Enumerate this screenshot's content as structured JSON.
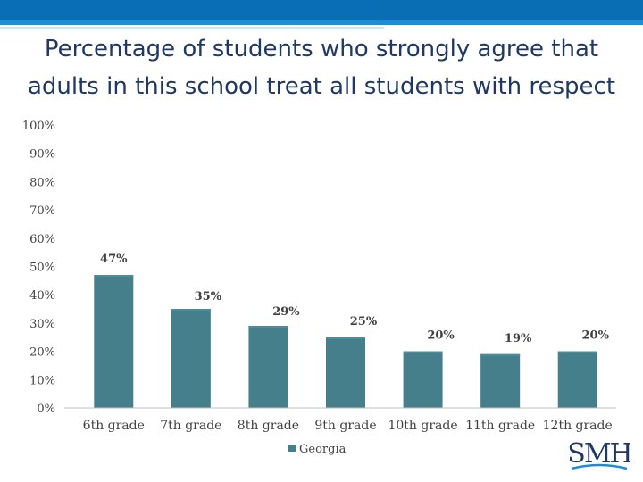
{
  "title_lines": [
    "Percentage of students who strongly agree that",
    "adults in this school treat all students with respect"
  ],
  "logo_text": "SMH",
  "colors": {
    "bar": "#467f8c",
    "bar_top": "#4e8c99",
    "axis": "#bfbfbf",
    "label": "#404040"
  },
  "chart_data": {
    "type": "bar",
    "title": "Percentage of students who strongly agree that adults in this school treat all students with respect",
    "categories": [
      "6th grade",
      "7th grade",
      "8th grade",
      "9th grade",
      "10th grade",
      "11th grade",
      "12th grade"
    ],
    "series": [
      {
        "name": "Georgia",
        "values": [
          47,
          35,
          29,
          25,
          20,
          19,
          20
        ]
      }
    ],
    "data_labels": [
      "47%",
      "35%",
      "29%",
      "25%",
      "20%",
      "19%",
      "20%"
    ],
    "y_ticks": [
      "0%",
      "10%",
      "20%",
      "30%",
      "40%",
      "50%",
      "60%",
      "70%",
      "80%",
      "90%",
      "100%"
    ],
    "ylim": [
      0,
      100
    ],
    "grid": false,
    "legend": "bottom"
  }
}
